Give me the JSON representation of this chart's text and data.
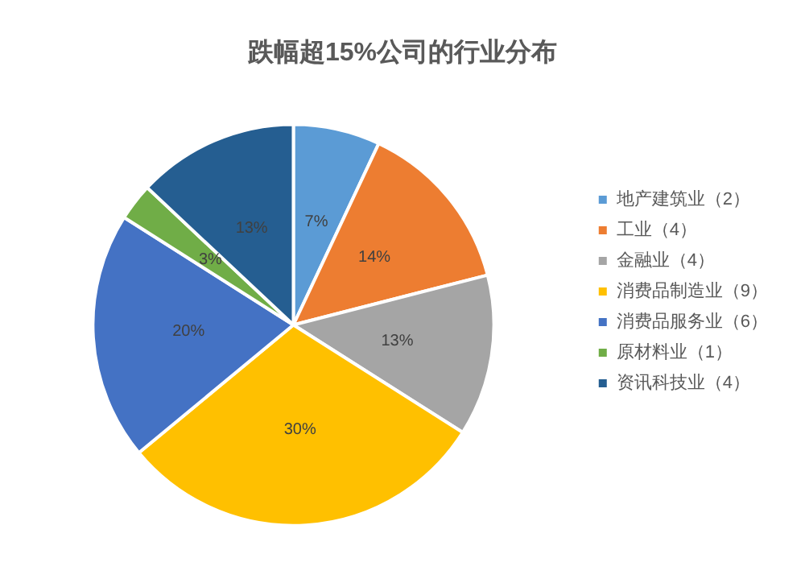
{
  "chart_data": {
    "type": "pie",
    "title": "跌幅超15%公司的行业分布",
    "categories": [
      "地产建筑业（2）",
      "工业（4）",
      "金融业（4）",
      "消费品制造业（9）",
      "消费品服务业（6）",
      "原材料业（1）",
      "资讯科技业（4）"
    ],
    "values": [
      7,
      14,
      13,
      30,
      20,
      3,
      13
    ],
    "value_labels": [
      "7%",
      "14%",
      "13%",
      "30%",
      "20%",
      "3%",
      "13%"
    ],
    "colors": [
      "#5b9bd5",
      "#ed7d31",
      "#a5a5a5",
      "#ffc000",
      "#4472c4",
      "#70ad47",
      "#255e91"
    ],
    "legend": "right"
  }
}
